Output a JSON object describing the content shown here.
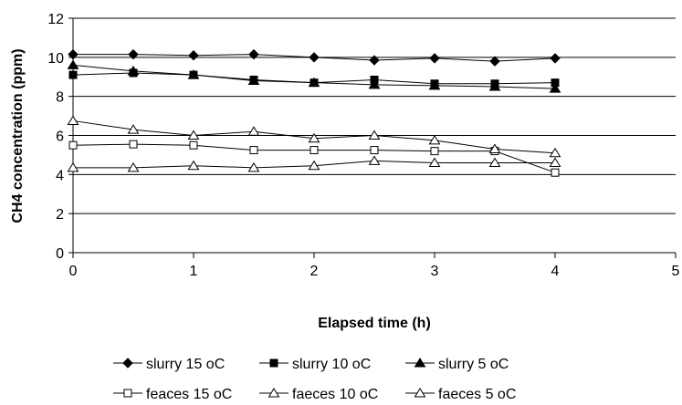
{
  "chart_data": {
    "type": "line",
    "xlabel": "Elapsed time (h)",
    "ylabel": "CH4 concentration (ppm)",
    "xlim": [
      0,
      5
    ],
    "ylim": [
      0,
      12
    ],
    "xticks": [
      "0",
      "1",
      "2",
      "3",
      "4",
      "5"
    ],
    "yticks": [
      "0",
      "2",
      "4",
      "6",
      "8",
      "10",
      "12"
    ],
    "x": [
      0,
      0.5,
      1,
      1.5,
      2,
      2.5,
      3,
      3.5,
      4
    ],
    "grid": "horizontal",
    "legend_position": "bottom",
    "series": [
      {
        "name": "slurry 15 oC",
        "marker": "diamond",
        "fill": "#000000",
        "values": [
          10.15,
          10.15,
          10.1,
          10.15,
          10.0,
          9.85,
          9.95,
          9.8,
          9.95
        ]
      },
      {
        "name": "slurry 10 oC",
        "marker": "square",
        "fill": "#000000",
        "values": [
          9.1,
          9.2,
          9.1,
          8.85,
          8.7,
          8.85,
          8.65,
          8.65,
          8.7
        ]
      },
      {
        "name": "slurry 5 oC",
        "marker": "triangle",
        "fill": "#000000",
        "values": [
          9.6,
          9.3,
          9.1,
          8.8,
          8.7,
          8.6,
          8.55,
          8.5,
          8.4
        ]
      },
      {
        "name": "feaces 15 oC",
        "marker": "square",
        "fill": "#ffffff",
        "values": [
          5.5,
          5.55,
          5.5,
          5.25,
          5.25,
          5.25,
          5.2,
          5.2,
          4.1
        ]
      },
      {
        "name": "faeces 10 oC",
        "marker": "triangle",
        "fill": "#ffffff",
        "values": [
          6.75,
          6.3,
          6.0,
          6.2,
          5.85,
          6.0,
          5.75,
          5.3,
          5.1
        ]
      },
      {
        "name": "faeces 5 oC",
        "marker": "triangle",
        "fill": "#ffffff",
        "values": [
          4.35,
          4.35,
          4.45,
          4.35,
          4.45,
          4.7,
          4.6,
          4.6,
          4.6
        ]
      }
    ]
  }
}
